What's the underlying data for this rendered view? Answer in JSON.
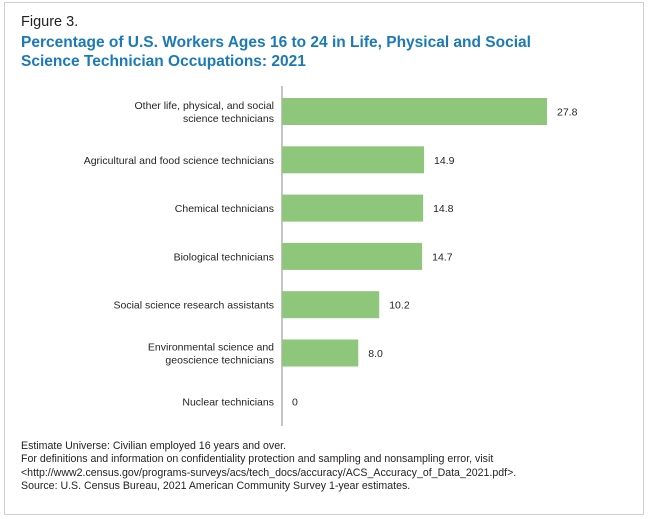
{
  "figure_label": "Figure 3.",
  "title_line1": "Percentage of U.S. Workers Ages 16 to 24 in Life, Physical and Social",
  "title_line2": "Science Technician Occupations: 2021",
  "colors": {
    "bar": "#8ec67b",
    "title": "#1a7ab8",
    "axis": "#888888"
  },
  "chart_data": {
    "type": "bar",
    "orientation": "horizontal",
    "title": "Percentage of U.S. Workers Ages 16 to 24 in Life, Physical and Social Science Technician Occupations: 2021",
    "categories": [
      [
        "Other life, physical, and social",
        "science technicians"
      ],
      [
        "Agricultural and food science technicians"
      ],
      [
        "Chemical technicians"
      ],
      [
        "Biological technicians"
      ],
      [
        "Social science research assistants"
      ],
      [
        "Environmental science and",
        "geoscience technicians"
      ],
      [
        "Nuclear technicians"
      ]
    ],
    "values": [
      27.8,
      14.9,
      14.8,
      14.7,
      10.2,
      8.0,
      0
    ],
    "value_labels": [
      "27.8",
      "14.9",
      "14.8",
      "14.7",
      "10.2",
      "8.0",
      "0"
    ],
    "xlim": [
      0,
      30
    ],
    "grid": false,
    "legend": "none"
  },
  "notes": {
    "universe": "Estimate Universe: Civilian employed 16 years and over.",
    "definitions_1": "For definitions and information on confidentiality protection and sampling and nonsampling error, visit",
    "definitions_2": "<http://www2.census.gov/programs-surveys/acs/tech_docs/accuracy/ACS_Accuracy_of_Data_2021.pdf>.",
    "source": "Source: U.S. Census Bureau, 2021 American Community Survey 1-year estimates."
  }
}
